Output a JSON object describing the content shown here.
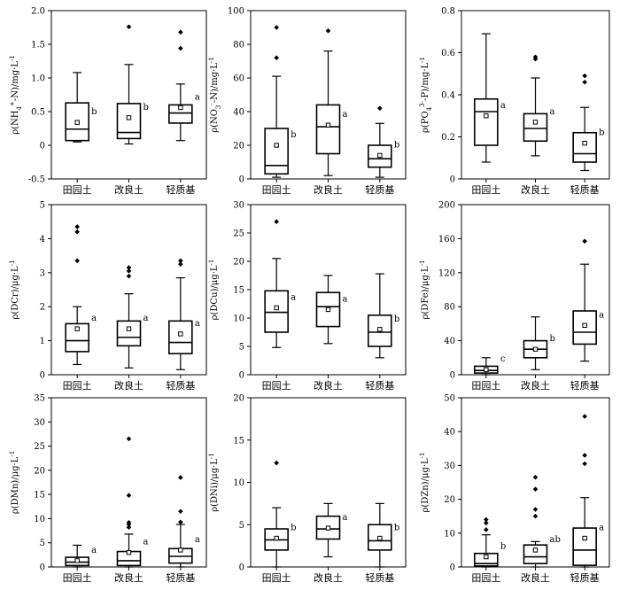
{
  "chart_data": [
    {
      "type": "box",
      "ylabel": "ρ(NH4+-N)/mg·L-1",
      "ylim": [
        -0.5,
        2.0
      ],
      "yticks": [
        "-0.5",
        "0",
        "0.5",
        "1.0",
        "1.5",
        "2.0"
      ],
      "categories": [
        "田园土",
        "改良土",
        "轻质基"
      ],
      "boxes": [
        {
          "whisker_low": 0.05,
          "q1": 0.07,
          "median": 0.24,
          "q3": 0.63,
          "whisker_high": 1.08,
          "mean": 0.34,
          "outliers": [],
          "sig": "b"
        },
        {
          "whisker_low": 0.02,
          "q1": 0.1,
          "median": 0.19,
          "q3": 0.62,
          "whisker_high": 1.2,
          "mean": 0.41,
          "outliers": [
            1.76
          ],
          "sig": "b"
        },
        {
          "whisker_low": 0.07,
          "q1": 0.33,
          "median": 0.48,
          "q3": 0.6,
          "whisker_high": 0.91,
          "mean": 0.56,
          "outliers": [
            1.44,
            1.68
          ],
          "sig": "a"
        }
      ]
    },
    {
      "type": "box",
      "ylabel": "ρ(NO3--N)/mg·L-1",
      "ylim": [
        0,
        100
      ],
      "yticks": [
        "0",
        "20",
        "40",
        "60",
        "80",
        "100"
      ],
      "categories": [
        "田园土",
        "改良土",
        "轻质基"
      ],
      "boxes": [
        {
          "whisker_low": 1,
          "q1": 3,
          "median": 8,
          "q3": 30,
          "whisker_high": 61,
          "mean": 20,
          "outliers": [
            72,
            90
          ],
          "sig": "b"
        },
        {
          "whisker_low": 2,
          "q1": 15,
          "median": 31,
          "q3": 44,
          "whisker_high": 76,
          "mean": 32,
          "outliers": [
            88
          ],
          "sig": "a"
        },
        {
          "whisker_low": 1,
          "q1": 7,
          "median": 12,
          "q3": 20,
          "whisker_high": 33,
          "mean": 14,
          "outliers": [
            42
          ],
          "sig": "b"
        }
      ]
    },
    {
      "type": "box",
      "ylabel": "ρ(PO43--P)/mg·L-1",
      "ylim": [
        0,
        0.8
      ],
      "yticks": [
        "0",
        "0.2",
        "0.4",
        "0.6",
        "0.8"
      ],
      "categories": [
        "田园土",
        "改良土",
        "轻质基"
      ],
      "boxes": [
        {
          "whisker_low": 0.08,
          "q1": 0.16,
          "median": 0.32,
          "q3": 0.38,
          "whisker_high": 0.69,
          "mean": 0.3,
          "outliers": [],
          "sig": "a"
        },
        {
          "whisker_low": 0.11,
          "q1": 0.18,
          "median": 0.24,
          "q3": 0.31,
          "whisker_high": 0.48,
          "mean": 0.27,
          "outliers": [
            0.57,
            0.58
          ],
          "sig": "a"
        },
        {
          "whisker_low": 0.04,
          "q1": 0.08,
          "median": 0.12,
          "q3": 0.22,
          "whisker_high": 0.34,
          "mean": 0.17,
          "outliers": [
            0.46,
            0.49
          ],
          "sig": "b"
        }
      ]
    },
    {
      "type": "box",
      "ylabel": "ρ(DCr)/μg·L-1",
      "ylim": [
        0,
        5
      ],
      "yticks": [
        "0",
        "1",
        "2",
        "3",
        "4",
        "5"
      ],
      "categories": [
        "田园土",
        "改良土",
        "轻质基"
      ],
      "boxes": [
        {
          "whisker_low": 0.3,
          "q1": 0.68,
          "median": 1.0,
          "q3": 1.5,
          "whisker_high": 2.0,
          "mean": 1.35,
          "outliers": [
            3.35,
            4.2,
            4.35
          ],
          "sig": "a"
        },
        {
          "whisker_low": 0.2,
          "q1": 0.85,
          "median": 1.1,
          "q3": 1.58,
          "whisker_high": 2.38,
          "mean": 1.35,
          "outliers": [
            2.9,
            3.05,
            3.15
          ],
          "sig": "a"
        },
        {
          "whisker_low": 0.15,
          "q1": 0.62,
          "median": 0.95,
          "q3": 1.58,
          "whisker_high": 2.85,
          "mean": 1.2,
          "outliers": [
            3.25,
            3.35
          ],
          "sig": "a"
        }
      ]
    },
    {
      "type": "box",
      "ylabel": "ρ(DCu)/μg·L-1",
      "ylim": [
        0,
        30
      ],
      "yticks": [
        "0",
        "5",
        "10",
        "15",
        "20",
        "25",
        "30"
      ],
      "categories": [
        "田园土",
        "改良土",
        "轻质基"
      ],
      "boxes": [
        {
          "whisker_low": 4.8,
          "q1": 7.5,
          "median": 11,
          "q3": 14.8,
          "whisker_high": 20.5,
          "mean": 11.8,
          "outliers": [
            27
          ],
          "sig": "a"
        },
        {
          "whisker_low": 5.5,
          "q1": 8.5,
          "median": 12,
          "q3": 14.5,
          "whisker_high": 17.5,
          "mean": 11.5,
          "outliers": [],
          "sig": "a"
        },
        {
          "whisker_low": 3,
          "q1": 5,
          "median": 7.5,
          "q3": 10.5,
          "whisker_high": 17.8,
          "mean": 8,
          "outliers": [],
          "sig": "b"
        }
      ]
    },
    {
      "type": "box",
      "ylabel": "ρ(DFe)/μg·L-1",
      "ylim": [
        0,
        200
      ],
      "yticks": [
        "0",
        "40",
        "80",
        "120",
        "160",
        "200"
      ],
      "categories": [
        "田园土",
        "改良土",
        "轻质基"
      ],
      "boxes": [
        {
          "whisker_low": 0,
          "q1": 2,
          "median": 5,
          "q3": 10,
          "whisker_high": 20,
          "mean": 6,
          "outliers": [],
          "sig": "c"
        },
        {
          "whisker_low": 6,
          "q1": 20,
          "median": 30,
          "q3": 40,
          "whisker_high": 68,
          "mean": 30,
          "outliers": [],
          "sig": "b"
        },
        {
          "whisker_low": 16,
          "q1": 36,
          "median": 50,
          "q3": 75,
          "whisker_high": 130,
          "mean": 58,
          "outliers": [
            157
          ],
          "sig": "a"
        }
      ]
    },
    {
      "type": "box",
      "ylabel": "ρ(DMn)/μg·L-1",
      "ylim": [
        0,
        35
      ],
      "yticks": [
        "0",
        "5",
        "10",
        "15",
        "20",
        "25",
        "30",
        "35"
      ],
      "categories": [
        "田园土",
        "改良土",
        "轻质基"
      ],
      "boxes": [
        {
          "whisker_low": 0,
          "q1": 0.3,
          "median": 1.0,
          "q3": 2.0,
          "whisker_high": 4.5,
          "mean": 1.3,
          "outliers": [],
          "sig": "a"
        },
        {
          "whisker_low": 0,
          "q1": 0.3,
          "median": 1.3,
          "q3": 3.2,
          "whisker_high": 6.8,
          "mean": 3.0,
          "outliers": [
            8.2,
            8.8,
            9.2,
            14.8,
            26.5
          ],
          "sig": "a"
        },
        {
          "whisker_low": 0,
          "q1": 0.8,
          "median": 2.2,
          "q3": 3.8,
          "whisker_high": 8.8,
          "mean": 3.5,
          "outliers": [
            9.3,
            11.5,
            18.5
          ],
          "sig": "a"
        }
      ]
    },
    {
      "type": "box",
      "ylabel": "ρ(DNi)/μg·L-1",
      "ylim": [
        0,
        20
      ],
      "yticks": [
        "0",
        "5",
        "10",
        "15",
        "20"
      ],
      "categories": [
        "田园土",
        "改良土",
        "轻质基"
      ],
      "boxes": [
        {
          "whisker_low": 0,
          "q1": 2.0,
          "median": 3.2,
          "q3": 4.5,
          "whisker_high": 7.0,
          "mean": 3.4,
          "outliers": [
            12.3
          ],
          "sig": "b"
        },
        {
          "whisker_low": 1.2,
          "q1": 3.3,
          "median": 4.5,
          "q3": 6.0,
          "whisker_high": 7.5,
          "mean": 4.6,
          "outliers": [],
          "sig": "a"
        },
        {
          "whisker_low": 0,
          "q1": 2.0,
          "median": 3.1,
          "q3": 5.0,
          "whisker_high": 7.5,
          "mean": 3.4,
          "outliers": [],
          "sig": "b"
        }
      ]
    },
    {
      "type": "box",
      "ylabel": "ρ(DZn)/μg·L-1",
      "ylim": [
        0,
        50
      ],
      "yticks": [
        "0",
        "10",
        "20",
        "30",
        "40",
        "50"
      ],
      "categories": [
        "田园土",
        "改良土",
        "轻质基"
      ],
      "boxes": [
        {
          "whisker_low": 0,
          "q1": 0.3,
          "median": 1.0,
          "q3": 4.0,
          "whisker_high": 9.5,
          "mean": 3.0,
          "outliers": [
            11,
            13,
            14
          ],
          "sig": "b"
        },
        {
          "whisker_low": 0,
          "q1": 1.0,
          "median": 3.0,
          "q3": 6.5,
          "whisker_high": 7.5,
          "mean": 5.0,
          "outliers": [
            15,
            17,
            23,
            26.5
          ],
          "sig": "ab"
        },
        {
          "whisker_low": 0,
          "q1": 0.5,
          "median": 5.0,
          "q3": 11.5,
          "whisker_high": 20.5,
          "mean": 8.5,
          "outliers": [
            30.5,
            33,
            44.5
          ],
          "sig": "a"
        }
      ]
    }
  ]
}
